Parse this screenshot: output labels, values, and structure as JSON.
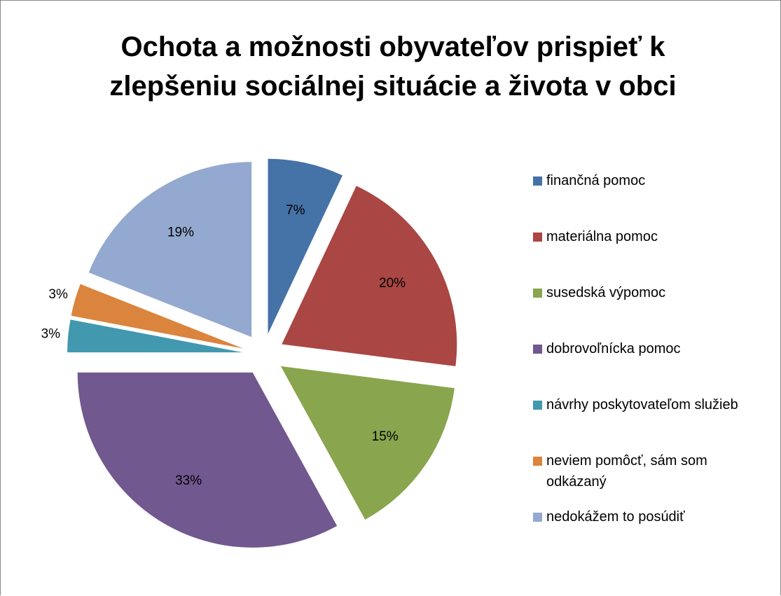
{
  "chart_data": {
    "type": "pie",
    "title": "Ochota a možnosti obyvateľov prispieť k zlepšeniu sociálnej situácie a života v obci",
    "categories": [
      "finančná pomoc",
      "materiálna pomoc",
      "susedská výpomoc",
      "dobrovoľnícka pomoc",
      "návrhy poskytovateľom služieb",
      "neviem pomôcť, sám som odkázaný",
      "nedokážem to posúdiť"
    ],
    "values": [
      7,
      20,
      15,
      33,
      3,
      3,
      19
    ],
    "value_labels": [
      "7%",
      "20%",
      "15%",
      "33%",
      "3%",
      "3%",
      "19%"
    ],
    "colors": [
      "#4572a7",
      "#aa4643",
      "#89a54e",
      "#71588f",
      "#4198af",
      "#db843d",
      "#93a9cf"
    ],
    "legend": "right"
  }
}
